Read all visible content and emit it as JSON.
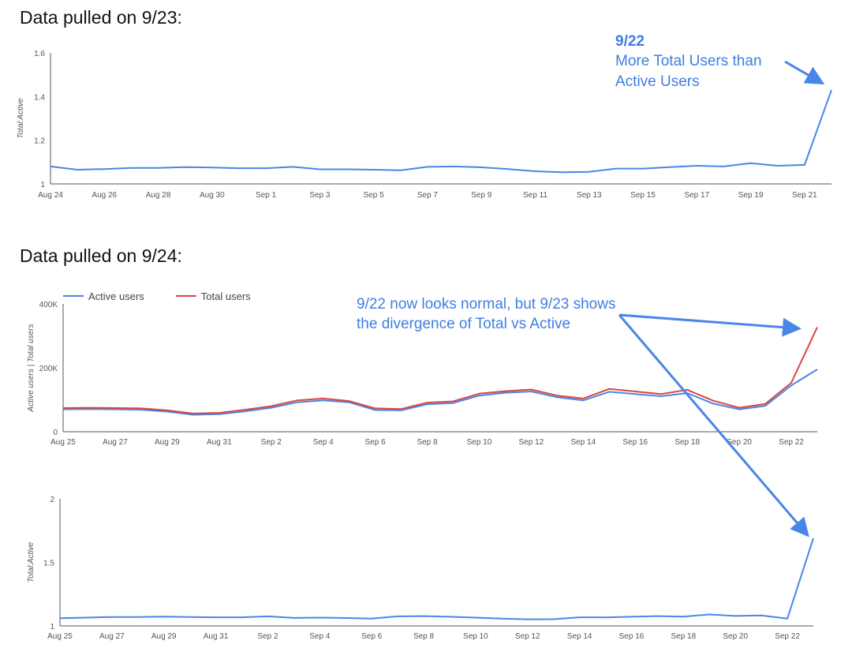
{
  "headings": {
    "first": "Data pulled on 9/23:",
    "second": "Data pulled on 9/24:"
  },
  "annotations": {
    "first": [
      "9/22",
      "More Total Users than",
      "Active Users"
    ],
    "second": [
      "9/22 now looks normal, but 9/23 shows",
      "the divergence of Total vs Active"
    ]
  },
  "colors": {
    "active": "#4a86e8",
    "total": "#d9473f",
    "annotation": "#3f7fe0",
    "arrow": "#4a86e8"
  },
  "chart_data": [
    {
      "type": "line",
      "title": "",
      "xlabel": "",
      "ylabel": "Total:Active",
      "ylim": [
        1,
        1.6
      ],
      "yticks": [
        "1",
        "1.2",
        "1.4",
        "1.6"
      ],
      "x": [
        "Aug 24",
        "Aug 25",
        "Aug 26",
        "Aug 27",
        "Aug 28",
        "Aug 29",
        "Aug 30",
        "Aug 31",
        "Sep 1",
        "Sep 2",
        "Sep 3",
        "Sep 4",
        "Sep 5",
        "Sep 6",
        "Sep 7",
        "Sep 8",
        "Sep 9",
        "Sep 10",
        "Sep 11",
        "Sep 12",
        "Sep 13",
        "Sep 14",
        "Sep 15",
        "Sep 16",
        "Sep 17",
        "Sep 18",
        "Sep 19",
        "Sep 20",
        "Sep 21",
        "Sep 22"
      ],
      "xtick_labels": [
        "Aug 24",
        "",
        "Aug 26",
        "",
        "Aug 28",
        "",
        "Aug 30",
        "",
        "Sep 1",
        "",
        "Sep 3",
        "",
        "Sep 5",
        "",
        "Sep 7",
        "",
        "Sep 9",
        "",
        "Sep 11",
        "",
        "Sep 13",
        "",
        "Sep 15",
        "",
        "Sep 17",
        "",
        "Sep 19",
        "",
        "Sep 21",
        ""
      ],
      "series": [
        {
          "values": [
            1.08,
            1.065,
            1.068,
            1.073,
            1.073,
            1.077,
            1.075,
            1.072,
            1.072,
            1.078,
            1.067,
            1.067,
            1.065,
            1.062,
            1.078,
            1.08,
            1.076,
            1.068,
            1.058,
            1.053,
            1.055,
            1.07,
            1.07,
            1.077,
            1.083,
            1.08,
            1.095,
            1.083,
            1.087,
            1.43
          ]
        }
      ],
      "grid": false
    },
    {
      "type": "line",
      "title": "",
      "xlabel": "",
      "ylabel": "Active users | Total users",
      "ylim": [
        0,
        400000
      ],
      "yticks": [
        "0",
        "200K",
        "400K"
      ],
      "legend": "top-left",
      "x": [
        "Aug 25",
        "Aug 26",
        "Aug 27",
        "Aug 28",
        "Aug 29",
        "Aug 30",
        "Aug 31",
        "Sep 1",
        "Sep 2",
        "Sep 3",
        "Sep 4",
        "Sep 5",
        "Sep 6",
        "Sep 7",
        "Sep 8",
        "Sep 9",
        "Sep 10",
        "Sep 11",
        "Sep 12",
        "Sep 13",
        "Sep 14",
        "Sep 15",
        "Sep 16",
        "Sep 17",
        "Sep 18",
        "Sep 19",
        "Sep 20",
        "Sep 21",
        "Sep 22",
        "Sep 23"
      ],
      "xtick_labels": [
        "Aug 25",
        "",
        "Aug 27",
        "",
        "Aug 29",
        "",
        "Aug 31",
        "",
        "Sep 2",
        "",
        "Sep 4",
        "",
        "Sep 6",
        "",
        "Sep 8",
        "",
        "Sep 10",
        "",
        "Sep 12",
        "",
        "Sep 14",
        "",
        "Sep 16",
        "",
        "Sep 18",
        "",
        "Sep 20",
        "",
        "Sep 22",
        ""
      ],
      "series": [
        {
          "name": "Active users",
          "values": [
            70000,
            71000,
            70000,
            69000,
            63000,
            53000,
            55000,
            64000,
            75000,
            92000,
            98000,
            92000,
            68000,
            67000,
            86000,
            90000,
            113000,
            122000,
            126000,
            108000,
            98000,
            125000,
            118000,
            111000,
            121000,
            88000,
            70000,
            81000,
            145000,
            195000
          ]
        },
        {
          "name": "Total users",
          "values": [
            74000,
            75000,
            74000,
            73000,
            67000,
            57000,
            59000,
            69000,
            80000,
            98000,
            104000,
            96000,
            73000,
            71000,
            91000,
            95000,
            119000,
            127000,
            132000,
            113000,
            104000,
            134000,
            126000,
            118000,
            131000,
            97000,
            75000,
            87000,
            153000,
            327000
          ]
        }
      ],
      "grid": false
    },
    {
      "type": "line",
      "title": "",
      "xlabel": "",
      "ylabel": "Total:Active",
      "ylim": [
        1,
        2
      ],
      "yticks": [
        "1",
        "1.5",
        "2"
      ],
      "x": [
        "Aug 25",
        "Aug 26",
        "Aug 27",
        "Aug 28",
        "Aug 29",
        "Aug 30",
        "Aug 31",
        "Sep 1",
        "Sep 2",
        "Sep 3",
        "Sep 4",
        "Sep 5",
        "Sep 6",
        "Sep 7",
        "Sep 8",
        "Sep 9",
        "Sep 10",
        "Sep 11",
        "Sep 12",
        "Sep 13",
        "Sep 14",
        "Sep 15",
        "Sep 16",
        "Sep 17",
        "Sep 18",
        "Sep 19",
        "Sep 20",
        "Sep 21",
        "Sep 22",
        "Sep 23"
      ],
      "xtick_labels": [
        "Aug 25",
        "",
        "Aug 27",
        "",
        "Aug 29",
        "",
        "Aug 31",
        "",
        "Sep 2",
        "",
        "Sep 4",
        "",
        "Sep 6",
        "",
        "Sep 8",
        "",
        "Sep 10",
        "",
        "Sep 12",
        "",
        "Sep 14",
        "",
        "Sep 16",
        "",
        "Sep 18",
        "",
        "Sep 20",
        "",
        "Sep 22",
        ""
      ],
      "series": [
        {
          "values": [
            1.06,
            1.065,
            1.07,
            1.07,
            1.073,
            1.07,
            1.068,
            1.068,
            1.075,
            1.063,
            1.065,
            1.062,
            1.058,
            1.075,
            1.077,
            1.072,
            1.065,
            1.057,
            1.052,
            1.053,
            1.068,
            1.067,
            1.072,
            1.077,
            1.073,
            1.09,
            1.078,
            1.082,
            1.058,
            1.69
          ]
        }
      ],
      "grid": false
    }
  ]
}
